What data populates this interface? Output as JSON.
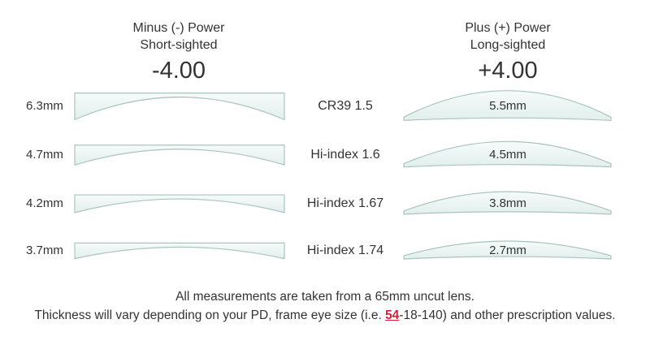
{
  "minus": {
    "title": "Minus (-) Power",
    "subtitle": "Short-sighted",
    "power": "-4.00"
  },
  "plus": {
    "title": "Plus (+) Power",
    "subtitle": "Long-sighted",
    "power": "+4.00"
  },
  "rows": [
    {
      "material": "CR39 1.5",
      "minus_thickness": "6.3mm",
      "plus_thickness": "5.5mm",
      "minus_mm": 6.3,
      "plus_mm": 5.5
    },
    {
      "material": "Hi-index 1.6",
      "minus_thickness": "4.7mm",
      "plus_thickness": "4.5mm",
      "minus_mm": 4.7,
      "plus_mm": 4.5
    },
    {
      "material": "Hi-index 1.67",
      "minus_thickness": "4.2mm",
      "plus_thickness": "3.8mm",
      "minus_mm": 4.2,
      "plus_mm": 3.8
    },
    {
      "material": "Hi-index 1.74",
      "minus_thickness": "3.7mm",
      "plus_thickness": "2.7mm",
      "minus_mm": 3.7,
      "plus_mm": 2.7
    }
  ],
  "footer": {
    "line1": "All measurements are taken from a 65mm uncut lens.",
    "line2_before": "Thickness will vary depending on your PD, frame eye size (i.e. ",
    "line2_highlight": "54",
    "line2_after": "-18-140) and other prescription values."
  },
  "colors": {
    "lens_fill": "#eef6f5",
    "lens_edge": "#a9c4c0",
    "highlight": "#d0213a"
  }
}
